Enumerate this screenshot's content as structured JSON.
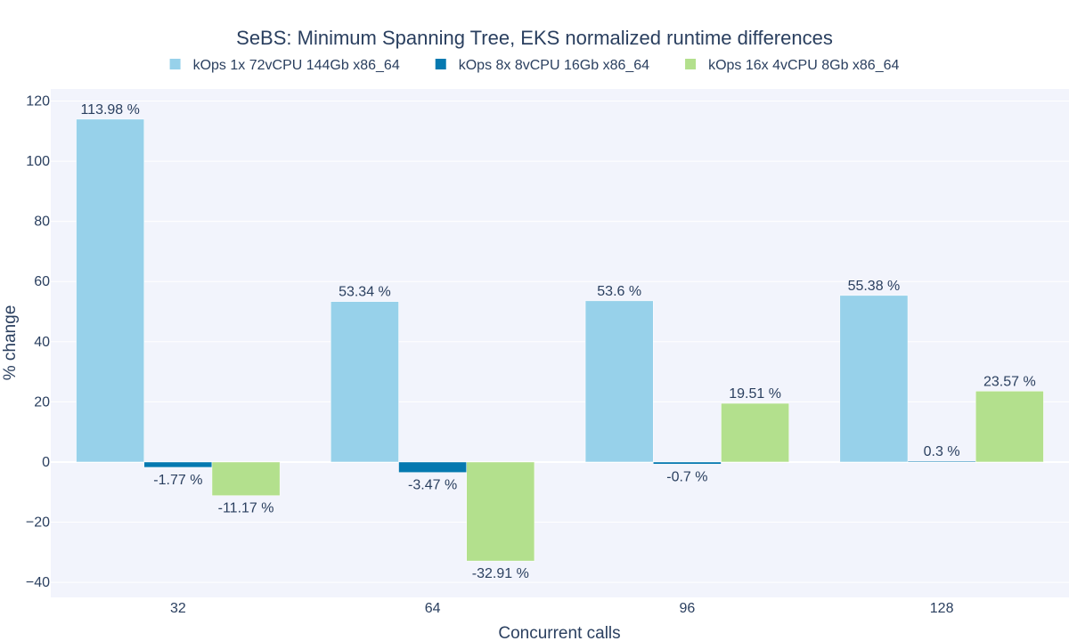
{
  "chart_data": {
    "type": "bar",
    "title": "SeBS: Minimum Spanning Tree, EKS normalized runtime differences",
    "xlabel": "Concurrent calls",
    "ylabel": "% change",
    "categories": [
      "32",
      "64",
      "96",
      "128"
    ],
    "ylim": [
      -45,
      124
    ],
    "yticks": [
      -40,
      -20,
      0,
      20,
      40,
      60,
      80,
      100,
      120
    ],
    "ytick_labels": [
      "−40",
      "−20",
      "0",
      "20",
      "40",
      "60",
      "80",
      "100",
      "120"
    ],
    "grid": true,
    "legend_position": "top-center",
    "background_color": "#f2f4fc",
    "series": [
      {
        "name": "kOps 1x 72vCPU 144Gb x86_64",
        "color": "#97d1ea",
        "values": [
          113.98,
          53.34,
          53.6,
          55.38
        ],
        "labels": [
          "113.98 %",
          "53.34 %",
          "53.6 %",
          "55.38 %"
        ]
      },
      {
        "name": "kOps 8x 8vCPU 16Gb x86_64",
        "color": "#0579b0",
        "values": [
          -1.77,
          -3.47,
          -0.7,
          0.3
        ],
        "labels": [
          "-1.77 %",
          "-3.47 %",
          "-0.7 %",
          "0.3 %"
        ]
      },
      {
        "name": "kOps 16x 4vCPU 8Gb x86_64",
        "color": "#b3e08d",
        "values": [
          -11.17,
          -32.91,
          19.51,
          23.57
        ],
        "labels": [
          "-11.17 %",
          "-32.91 %",
          "19.51 %",
          "23.57 %"
        ]
      }
    ]
  }
}
